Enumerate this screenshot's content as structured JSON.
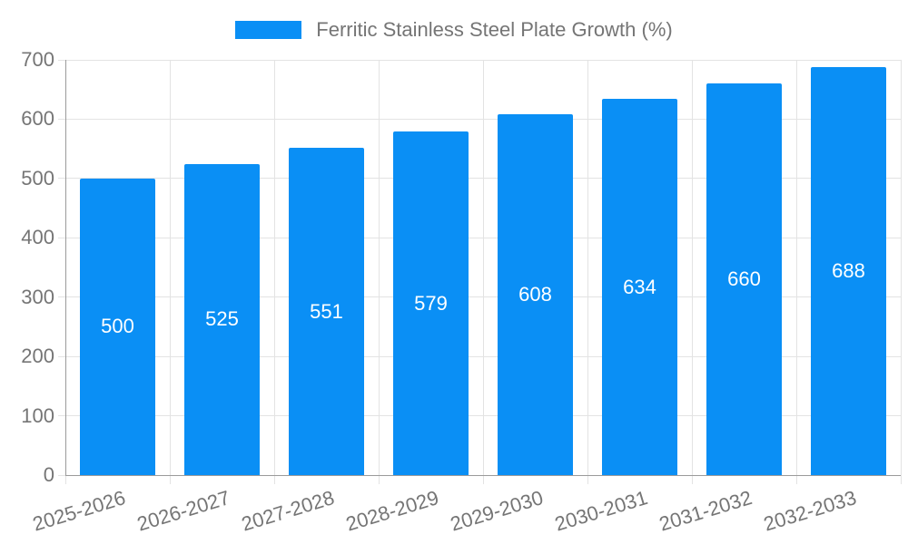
{
  "chart_data": {
    "type": "bar",
    "title": "",
    "legend_position": "top",
    "grid": true,
    "categories": [
      "2025-2026",
      "2026-2027",
      "2027-2028",
      "2028-2029",
      "2029-2030",
      "2030-2031",
      "2031-2032",
      "2032-2033"
    ],
    "series": [
      {
        "name": "Ferritic Stainless Steel Plate Growth (%)",
        "values": [
          500,
          525,
          551,
          579,
          608,
          634,
          660,
          688
        ]
      }
    ],
    "xlabel": "",
    "ylabel": "",
    "ylim": [
      0,
      700
    ],
    "y_ticks": [
      0,
      100,
      200,
      300,
      400,
      500,
      600,
      700
    ],
    "colors": {
      "bar": "#0A8FF5",
      "grid": "#e3e3e3",
      "tick": "#c9c9c9",
      "axis": "#9b9b9b",
      "text": "#757575",
      "value_text": "#ffffff",
      "background": "#ffffff"
    }
  }
}
